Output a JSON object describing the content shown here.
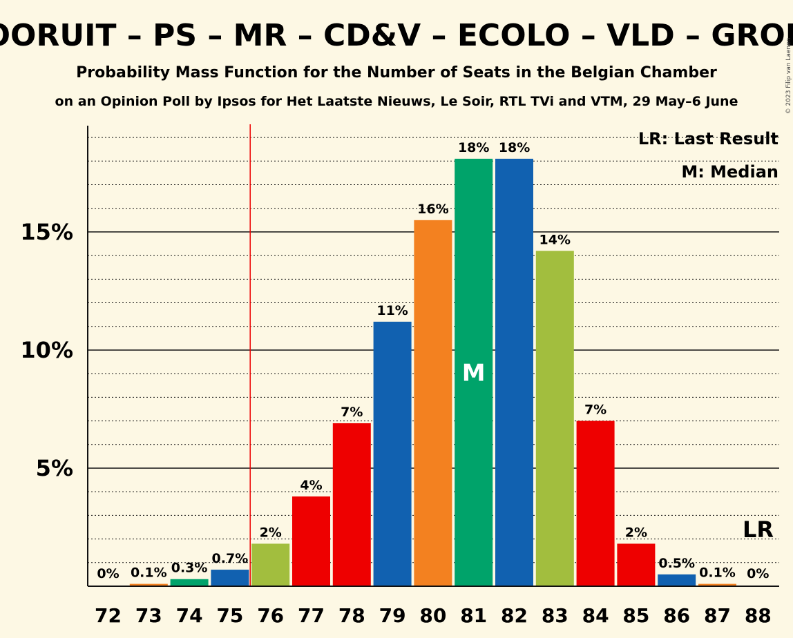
{
  "chart_data": {
    "type": "bar",
    "title": "VOORUIT – PS – MR – CD&V – ECOLO – VLD – GROEN",
    "subtitle": "Probability Mass Function for the Number of Seats in the Belgian Chamber",
    "source": "on an Opinion Poll by Ipsos for Het Laatste Nieuws, Le Soir, RTL TVi and VTM, 29 May–6 June",
    "copyright": "© 2023 Filip van Laenen",
    "categories": [
      "72",
      "73",
      "74",
      "75",
      "76",
      "77",
      "78",
      "79",
      "80",
      "81",
      "82",
      "83",
      "84",
      "85",
      "86",
      "87",
      "88"
    ],
    "values": [
      0,
      0.1,
      0.3,
      0.7,
      1.8,
      3.8,
      6.9,
      11.2,
      15.5,
      18.1,
      18.1,
      14.2,
      7.0,
      1.8,
      0.5,
      0.1,
      0
    ],
    "data_labels": [
      "0%",
      "0.1%",
      "0.3%",
      "0.7%",
      "2%",
      "4%",
      "7%",
      "11%",
      "16%",
      "18%",
      "18%",
      "14%",
      "7%",
      "2%",
      "0.5%",
      "0.1%",
      "0%"
    ],
    "colors": [
      "#f38120",
      "#f38120",
      "#00a36a",
      "#1161b0",
      "#a2be3e",
      "#ee0000",
      "#ee0000",
      "#1161b0",
      "#f38120",
      "#00a36a",
      "#1161b0",
      "#a2be3e",
      "#ee0000",
      "#ee0000",
      "#1161b0",
      "#f38120",
      "#f38120"
    ],
    "ylim": [
      0,
      19.5
    ],
    "yticks": [
      5,
      10,
      15
    ],
    "ytick_labels": [
      "5%",
      "10%",
      "15%"
    ],
    "last_result_seat": "76",
    "median_seat": "81",
    "median_mark": "M",
    "last_result_mark": "LR",
    "legend": [
      "LR: Last Result",
      "M: Median"
    ],
    "legend_position": "top-right",
    "grid": true
  }
}
